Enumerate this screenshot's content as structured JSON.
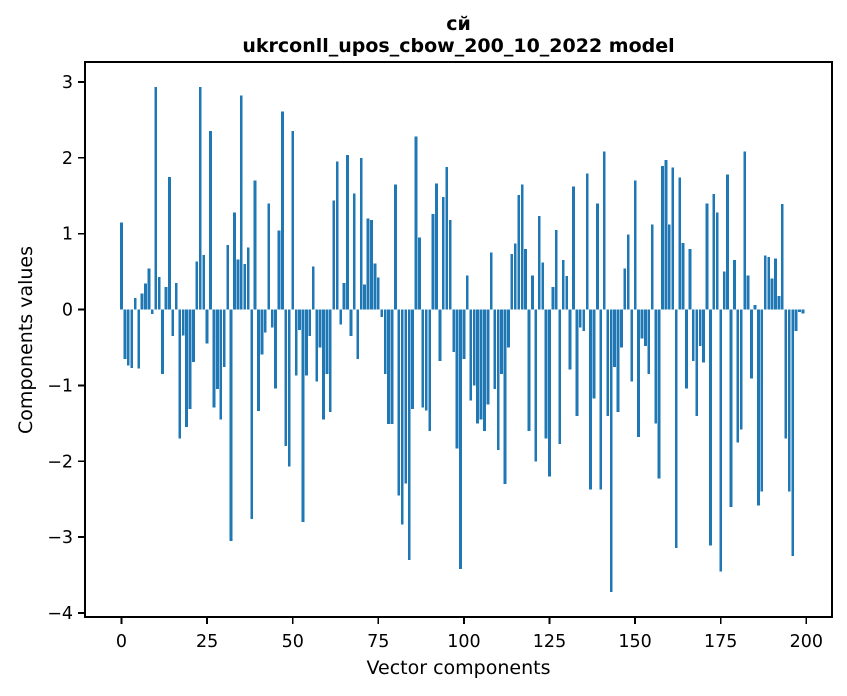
{
  "chart_data": {
    "type": "bar",
    "title_line1": "сй",
    "title_line2": "ukrconll_upos_cbow_200_10_2022 model",
    "xlabel": "Vector components",
    "ylabel": "Components values",
    "bar_color": "#1f77b4",
    "axis_color": "#000000",
    "background_color": "#ffffff",
    "grid": false,
    "legend": null,
    "x_ticks": [
      0,
      25,
      50,
      75,
      100,
      125,
      150,
      175,
      200
    ],
    "y_ticks": [
      -4,
      -3,
      -2,
      -1,
      0,
      1,
      2,
      3
    ],
    "xlim": [
      -10.66,
      207.5
    ],
    "ylim": [
      -4.0525,
      3.2625
    ],
    "x_start": 0,
    "x_step": 1,
    "bar_width": 0.8,
    "values": [
      1.15,
      -0.65,
      -0.74,
      -0.77,
      0.15,
      -0.78,
      0.21,
      0.34,
      0.54,
      -0.06,
      2.93,
      0.43,
      -0.85,
      0.3,
      1.75,
      -0.35,
      0.35,
      -1.7,
      -0.34,
      -1.55,
      -1.31,
      -0.69,
      0.63,
      2.93,
      0.72,
      -0.45,
      2.35,
      -1.29,
      -1.05,
      -1.45,
      -0.76,
      0.85,
      -3.05,
      1.28,
      0.66,
      2.82,
      0.6,
      0.82,
      -2.76,
      1.7,
      -1.34,
      -0.59,
      -0.3,
      1.4,
      -0.24,
      -1.04,
      1.04,
      2.61,
      -1.8,
      -2.07,
      2.35,
      -0.87,
      -0.27,
      -2.8,
      -0.87,
      -0.35,
      0.57,
      -0.95,
      -0.5,
      -1.45,
      -0.85,
      -1.35,
      1.44,
      1.95,
      -0.2,
      0.35,
      2.04,
      -0.35,
      1.53,
      -0.65,
      2.0,
      0.33,
      1.2,
      1.18,
      0.61,
      0.42,
      -0.1,
      -0.85,
      -1.51,
      -1.51,
      1.65,
      -2.45,
      -2.83,
      -2.29,
      -3.3,
      -1.31,
      2.28,
      0.95,
      -1.29,
      -1.33,
      -1.6,
      1.26,
      1.66,
      -0.68,
      1.48,
      1.88,
      1.18,
      -0.56,
      -1.83,
      -3.42,
      -0.65,
      0.45,
      -1.2,
      -1.0,
      -1.5,
      -1.45,
      -1.6,
      -1.25,
      0.75,
      -1.05,
      -1.85,
      -0.85,
      -2.3,
      -0.5,
      0.73,
      0.87,
      1.51,
      1.65,
      0.8,
      -1.6,
      0.45,
      -2.0,
      1.23,
      0.62,
      -1.7,
      -2.2,
      0.3,
      1.05,
      -1.77,
      0.65,
      0.44,
      -0.79,
      1.62,
      -1.4,
      -0.24,
      -0.28,
      1.79,
      -2.37,
      -1.17,
      1.4,
      -2.37,
      2.08,
      -1.4,
      -3.72,
      -0.76,
      -1.35,
      -0.5,
      0.54,
      0.99,
      -0.95,
      1.7,
      -1.68,
      -0.38,
      -0.48,
      -0.85,
      1.12,
      -1.5,
      -2.23,
      1.89,
      1.97,
      1.12,
      1.87,
      -3.14,
      1.74,
      0.88,
      -1.04,
      0.8,
      -0.68,
      -1.4,
      -0.48,
      -0.7,
      1.4,
      -3.11,
      1.52,
      1.28,
      -3.45,
      0.5,
      1.78,
      -2.6,
      0.65,
      -1.75,
      -1.58,
      2.08,
      0.45,
      -0.91,
      0.06,
      -2.58,
      -2.4,
      0.71,
      0.69,
      0.41,
      0.67,
      0.18,
      1.39,
      -1.7,
      -2.4,
      -3.25,
      -0.28,
      -0.03,
      -0.05
    ]
  }
}
